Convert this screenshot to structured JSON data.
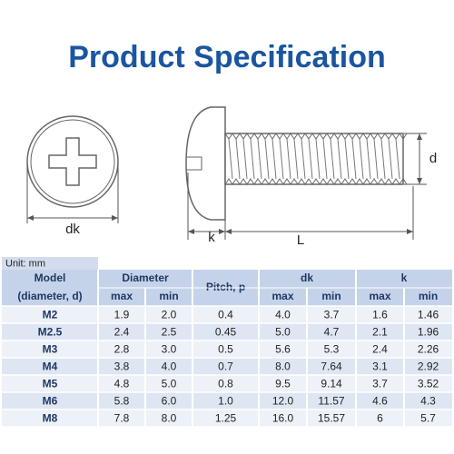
{
  "header": {
    "title": "Product Specification"
  },
  "drawing": {
    "labels": {
      "dk": "dk",
      "k": "k",
      "L": "L",
      "d": "d"
    }
  },
  "table": {
    "unit": "Unit: mm",
    "header": [
      "Model",
      "Diameter",
      "Pitch, p",
      "dk",
      "k"
    ],
    "subheader": [
      "(diameter, d)",
      "max",
      "min",
      "max",
      "min",
      "max",
      "min"
    ],
    "rows": [
      [
        "M2",
        "1.9",
        "2.0",
        "0.4",
        "4.0",
        "3.7",
        "1.6",
        "1.46"
      ],
      [
        "M2.5",
        "2.4",
        "2.5",
        "0.45",
        "5.0",
        "4.7",
        "2.1",
        "1.96"
      ],
      [
        "M3",
        "2.8",
        "3.0",
        "0.5",
        "5.6",
        "5.3",
        "2.4",
        "2.26"
      ],
      [
        "M4",
        "3.8",
        "4.0",
        "0.7",
        "8.0",
        "7.64",
        "3.1",
        "2.92"
      ],
      [
        "M5",
        "4.8",
        "5.0",
        "0.8",
        "9.5",
        "9.14",
        "3.7",
        "3.52"
      ],
      [
        "M6",
        "5.8",
        "6.0",
        "1.0",
        "12.0",
        "11.57",
        "4.6",
        "4.3"
      ],
      [
        "M8",
        "7.8",
        "8.0",
        "1.25",
        "16.0",
        "15.57",
        "6",
        "5.7"
      ]
    ]
  }
}
